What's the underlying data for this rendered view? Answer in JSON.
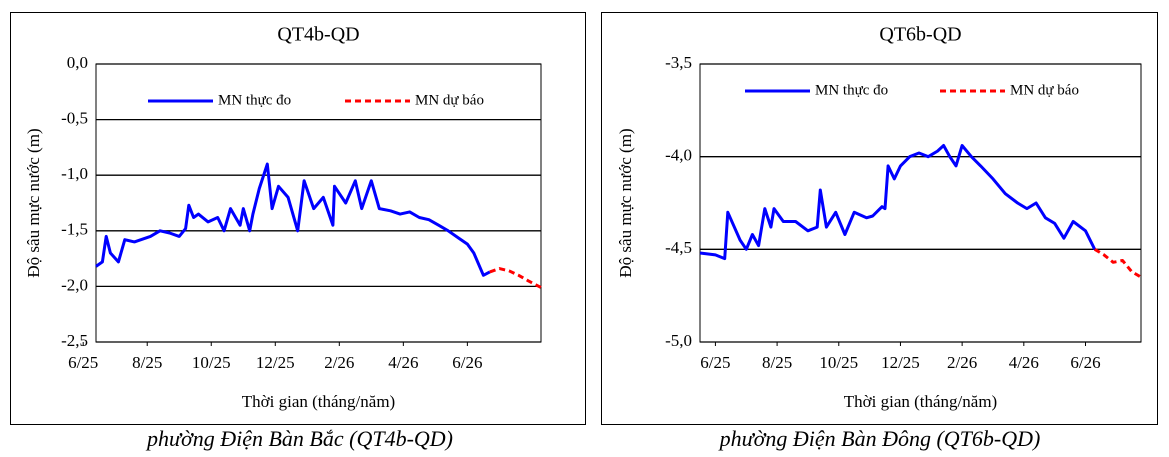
{
  "chart_data": [
    {
      "type": "line",
      "title": "QT4b-QD",
      "y_label": "Độ sâu mực nước (m)",
      "x_label": "Thời gian  (tháng/năm)",
      "caption": "phường Điện Bàn Bắc (QT4b-QD)",
      "xlim": [
        0.4,
        14.3
      ],
      "ylim": [
        -2.5,
        0
      ],
      "xticks": [
        {
          "value": 0,
          "label": "6/25"
        },
        {
          "value": 2,
          "label": "8/25"
        },
        {
          "value": 4,
          "label": "10/25"
        },
        {
          "value": 6,
          "label": "12/25"
        },
        {
          "value": 8,
          "label": "2/26"
        },
        {
          "value": 10,
          "label": "4/26"
        },
        {
          "value": 12,
          "label": "6/26"
        }
      ],
      "yticks": [
        {
          "value": 0,
          "label": "0,0"
        },
        {
          "value": -0.5,
          "label": "-0,5"
        },
        {
          "value": -1,
          "label": "-1,0"
        },
        {
          "value": -1.5,
          "label": "-1,5"
        },
        {
          "value": -2,
          "label": "-2,0"
        },
        {
          "value": -2.5,
          "label": "-2,5"
        }
      ],
      "grid": true,
      "series": [
        {
          "name": "MN thực đo",
          "color": "#0000ff",
          "line_style": "solid",
          "x": [
            0.4,
            0.6,
            0.72,
            0.85,
            1.1,
            1.3,
            1.6,
            2.1,
            2.4,
            2.7,
            3.0,
            3.2,
            3.3,
            3.45,
            3.6,
            3.9,
            4.2,
            4.4,
            4.6,
            4.9,
            5.0,
            5.2,
            5.3,
            5.5,
            5.75,
            5.9,
            6.1,
            6.4,
            6.7,
            6.9,
            7.2,
            7.5,
            7.8,
            7.85,
            8.2,
            8.5,
            8.7,
            9.0,
            9.25,
            9.6,
            9.9,
            10.2,
            10.5,
            10.8,
            11.1,
            11.4,
            11.75,
            12.0,
            12.2,
            12.5,
            12.7
          ],
          "values": [
            -1.82,
            -1.78,
            -1.55,
            -1.7,
            -1.78,
            -1.58,
            -1.6,
            -1.55,
            -1.5,
            -1.52,
            -1.55,
            -1.48,
            -1.27,
            -1.38,
            -1.35,
            -1.42,
            -1.38,
            -1.5,
            -1.3,
            -1.45,
            -1.3,
            -1.5,
            -1.35,
            -1.12,
            -0.9,
            -1.3,
            -1.1,
            -1.2,
            -1.5,
            -1.05,
            -1.3,
            -1.2,
            -1.45,
            -1.1,
            -1.25,
            -1.05,
            -1.3,
            -1.05,
            -1.3,
            -1.32,
            -1.35,
            -1.33,
            -1.38,
            -1.4,
            -1.45,
            -1.5,
            -1.57,
            -1.62,
            -1.7,
            -1.9,
            -1.87
          ]
        },
        {
          "name": "MN dự báo",
          "color": "#ff0000",
          "line_style": "dashed",
          "x": [
            12.7,
            13.0,
            13.3,
            13.6,
            13.9,
            14.3
          ],
          "values": [
            -1.87,
            -1.84,
            -1.86,
            -1.9,
            -1.95,
            -2.01
          ]
        }
      ]
    },
    {
      "type": "line",
      "title": "QT6b-QD",
      "y_label": "Độ sâu mực nước (m)",
      "x_label": "Thời gian  (tháng/năm)",
      "caption": "phường Điện Bàn Đông (QT6b-QD)",
      "xlim": [
        -0.5,
        13.8
      ],
      "ylim": [
        -5,
        -3.5
      ],
      "xticks": [
        {
          "value": 0,
          "label": "6/25"
        },
        {
          "value": 2,
          "label": "8/25"
        },
        {
          "value": 4,
          "label": "10/25"
        },
        {
          "value": 6,
          "label": "12/25"
        },
        {
          "value": 8,
          "label": "2/26"
        },
        {
          "value": 10,
          "label": "4/26"
        },
        {
          "value": 12,
          "label": "6/26"
        }
      ],
      "yticks": [
        {
          "value": -3.5,
          "label": "-3,5"
        },
        {
          "value": -4,
          "label": "-4,0"
        },
        {
          "value": -4.5,
          "label": "-4,5"
        },
        {
          "value": -5,
          "label": "-5,0"
        }
      ],
      "grid": true,
      "series": [
        {
          "name": "MN thực đo",
          "color": "#0000ff",
          "line_style": "solid",
          "x": [
            -0.5,
            0.0,
            0.3,
            0.4,
            0.8,
            1.0,
            1.2,
            1.4,
            1.6,
            1.8,
            1.9,
            2.2,
            2.6,
            3.0,
            3.3,
            3.4,
            3.6,
            3.9,
            4.2,
            4.5,
            4.9,
            5.1,
            5.4,
            5.5,
            5.6,
            5.8,
            6.0,
            6.3,
            6.6,
            6.9,
            7.2,
            7.4,
            7.6,
            7.8,
            8.0,
            8.3,
            8.6,
            9.0,
            9.4,
            9.8,
            10.1,
            10.4,
            10.7,
            11.0,
            11.3,
            11.6,
            12.0,
            12.3
          ],
          "values": [
            -4.52,
            -4.53,
            -4.55,
            -4.3,
            -4.45,
            -4.5,
            -4.42,
            -4.48,
            -4.28,
            -4.38,
            -4.28,
            -4.35,
            -4.35,
            -4.4,
            -4.38,
            -4.18,
            -4.38,
            -4.3,
            -4.42,
            -4.3,
            -4.33,
            -4.32,
            -4.27,
            -4.28,
            -4.05,
            -4.12,
            -4.05,
            -4.0,
            -3.98,
            -4.0,
            -3.97,
            -3.94,
            -4.0,
            -4.05,
            -3.94,
            -4.0,
            -4.05,
            -4.12,
            -4.2,
            -4.25,
            -4.28,
            -4.25,
            -4.33,
            -4.36,
            -4.44,
            -4.35,
            -4.4,
            -4.5
          ]
        },
        {
          "name": "MN dự báo",
          "color": "#ff0000",
          "line_style": "dashed",
          "x": [
            12.3,
            12.6,
            12.9,
            13.2,
            13.5,
            13.8
          ],
          "values": [
            -4.5,
            -4.53,
            -4.57,
            -4.56,
            -4.62,
            -4.65
          ]
        }
      ]
    }
  ]
}
